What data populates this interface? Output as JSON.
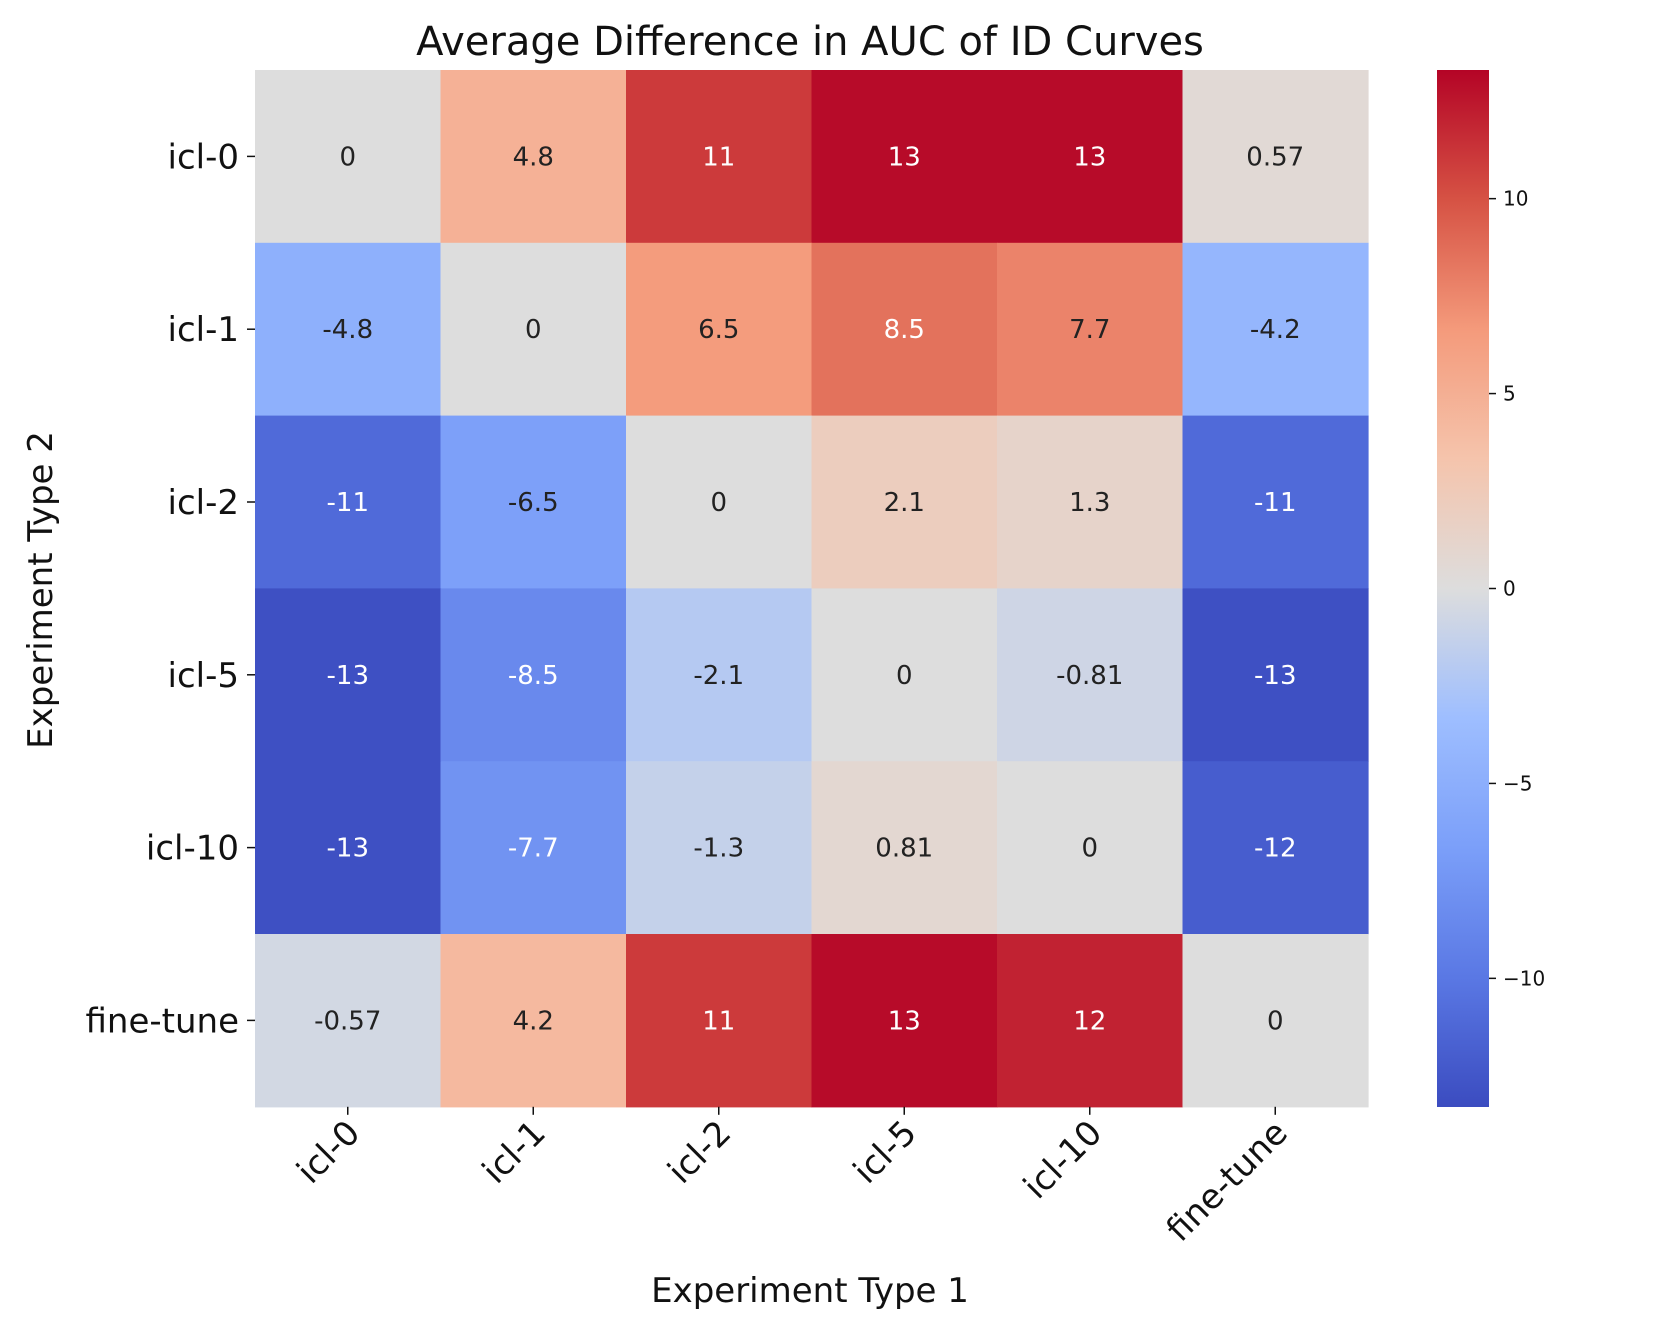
{
  "chart_data": {
    "type": "heatmap",
    "title": "Average Difference in AUC of ID Curves",
    "xlabel": "Experiment Type 1",
    "ylabel": "Experiment Type 2",
    "x_categories": [
      "icl-0",
      "icl-1",
      "icl-2",
      "icl-5",
      "icl-10",
      "fine-tune"
    ],
    "y_categories": [
      "icl-0",
      "icl-1",
      "icl-2",
      "icl-5",
      "icl-10",
      "fine-tune"
    ],
    "values": [
      [
        0,
        4.8,
        11,
        13,
        13,
        0.57
      ],
      [
        -4.8,
        0,
        6.5,
        8.5,
        7.7,
        -4.2
      ],
      [
        -11,
        -6.5,
        0,
        2.1,
        1.3,
        -11
      ],
      [
        -13,
        -8.5,
        -2.1,
        0,
        -0.81,
        -13
      ],
      [
        -13,
        -7.7,
        -1.3,
        0.81,
        0,
        -12
      ],
      [
        -0.57,
        4.2,
        11,
        13,
        12,
        0
      ]
    ],
    "cell_labels": [
      [
        "0",
        "4.8",
        "11",
        "13",
        "13",
        "0.57"
      ],
      [
        "-4.8",
        "0",
        "6.5",
        "8.5",
        "7.7",
        "-4.2"
      ],
      [
        "-11",
        "-6.5",
        "0",
        "2.1",
        "1.3",
        "-11"
      ],
      [
        "-13",
        "-8.5",
        "-2.1",
        "0",
        "-0.81",
        "-13"
      ],
      [
        "-13",
        "-7.7",
        "-1.3",
        "0.81",
        "0",
        "-12"
      ],
      [
        "-0.57",
        "4.2",
        "11",
        "13",
        "12",
        "0"
      ]
    ],
    "colormap": "coolwarm",
    "color_range": [
      -13.3,
      13.3
    ],
    "colorbar_ticks": [
      10,
      5,
      0,
      -5,
      -10
    ],
    "colorbar_tick_labels": [
      "10",
      "5",
      "0",
      "−5",
      "−10"
    ],
    "colorbar_position": "right",
    "x_tick_rotation_deg": 45
  }
}
